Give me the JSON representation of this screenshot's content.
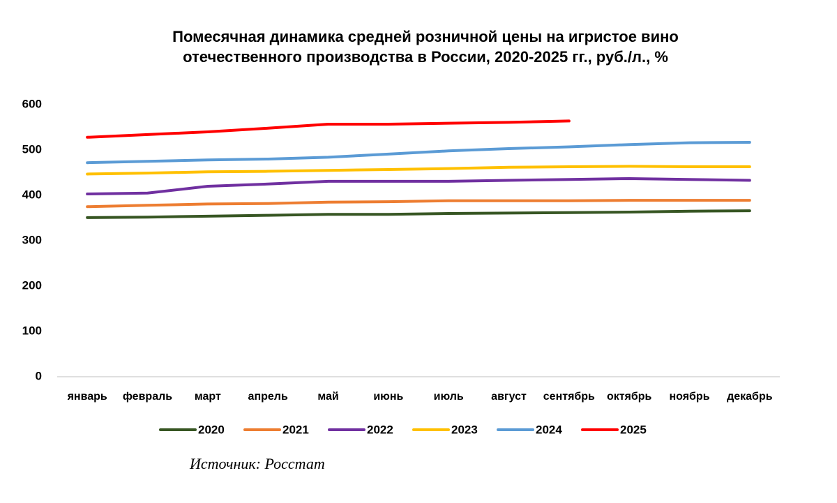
{
  "chart_data": {
    "type": "line",
    "title": "Помесячная динамика средней розничной цены на игристое вино отечественного производства в России, 2020-2025 гг., руб./л., %",
    "source": "Источник: Росстат",
    "categories": [
      "январь",
      "февраль",
      "март",
      "апрель",
      "май",
      "июнь",
      "июль",
      "август",
      "сентябрь",
      "октябрь",
      "ноябрь",
      "декабрь"
    ],
    "series": [
      {
        "name": "2020",
        "color": "#375623",
        "values": [
          351,
          352,
          354,
          356,
          358,
          358,
          360,
          361,
          362,
          363,
          365,
          366
        ]
      },
      {
        "name": "2021",
        "color": "#ed7d31",
        "values": [
          375,
          378,
          381,
          382,
          385,
          386,
          388,
          388,
          388,
          389,
          389,
          389
        ]
      },
      {
        "name": "2022",
        "color": "#7030a0",
        "values": [
          403,
          405,
          420,
          425,
          431,
          431,
          431,
          433,
          435,
          437,
          435,
          433
        ]
      },
      {
        "name": "2023",
        "color": "#ffc000",
        "values": [
          447,
          449,
          452,
          453,
          455,
          457,
          459,
          462,
          463,
          464,
          463,
          463
        ]
      },
      {
        "name": "2024",
        "color": "#5b9bd5",
        "values": [
          472,
          475,
          478,
          480,
          484,
          491,
          498,
          503,
          507,
          512,
          516,
          517
        ]
      },
      {
        "name": "2025",
        "color": "#ff0000",
        "values": [
          528,
          534,
          540,
          548,
          557,
          557,
          559,
          561,
          564,
          null,
          null,
          null
        ]
      }
    ],
    "ylim": [
      0,
      600
    ],
    "yticks": [
      0,
      100,
      200,
      300,
      400,
      500,
      600
    ],
    "grid": false
  }
}
